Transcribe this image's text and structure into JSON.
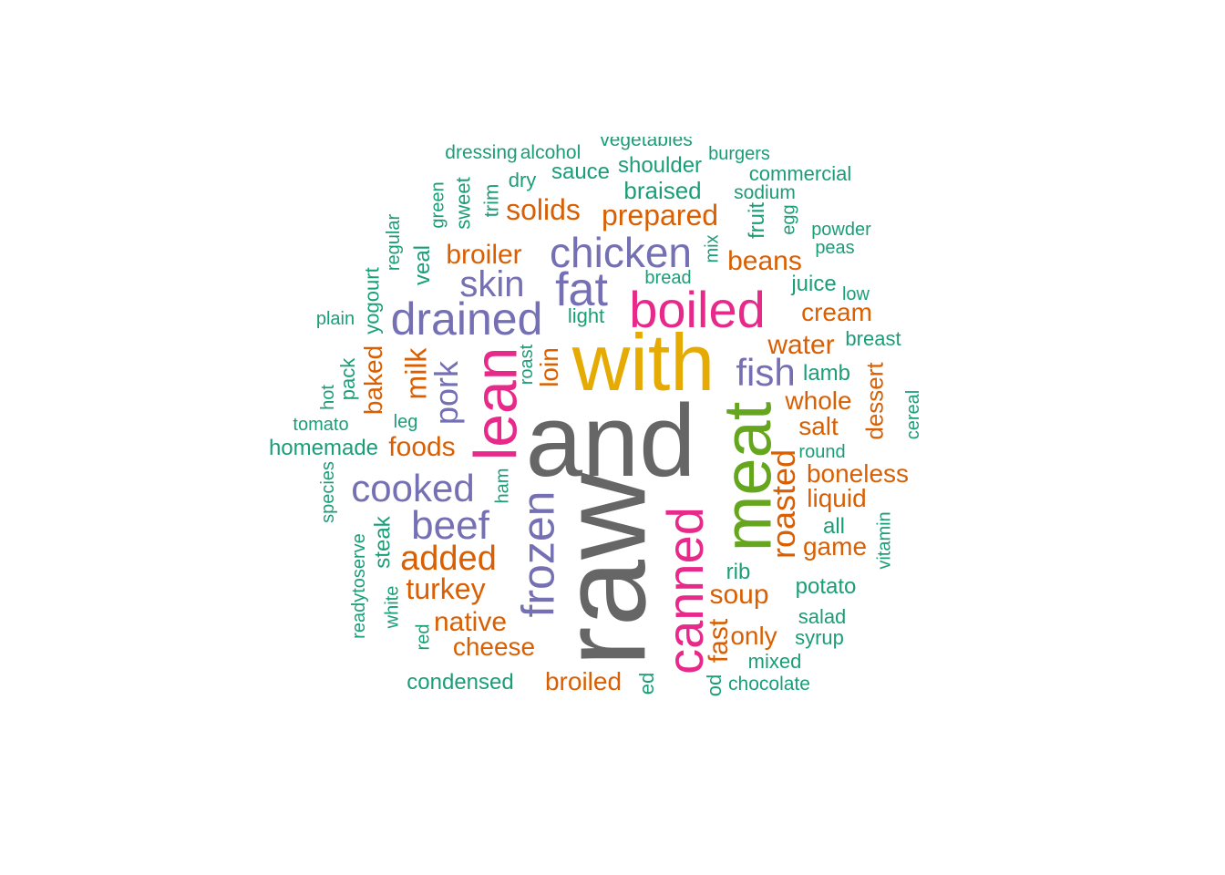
{
  "colors": {
    "gray": "#666666",
    "gold": "#E6AB02",
    "magenta": "#E7298A",
    "green": "#66A61E",
    "purple": "#7570B3",
    "orange": "#D95F02",
    "teal": "#1B9E77"
  },
  "words": [
    {
      "text": "raw",
      "color": "gray",
      "rotated": true
    },
    {
      "text": "and",
      "color": "gray",
      "rotated": false
    },
    {
      "text": "with",
      "color": "gold",
      "rotated": false
    },
    {
      "text": "meat",
      "color": "green",
      "rotated": true
    },
    {
      "text": "canned",
      "color": "magenta",
      "rotated": true
    },
    {
      "text": "lean",
      "color": "magenta",
      "rotated": true
    },
    {
      "text": "boiled",
      "color": "magenta",
      "rotated": false
    },
    {
      "text": "frozen",
      "color": "purple",
      "rotated": true
    },
    {
      "text": "chicken",
      "color": "purple",
      "rotated": false
    },
    {
      "text": "fat",
      "color": "purple",
      "rotated": false
    },
    {
      "text": "drained",
      "color": "purple",
      "rotated": false
    },
    {
      "text": "cooked",
      "color": "purple",
      "rotated": false
    },
    {
      "text": "beef",
      "color": "purple",
      "rotated": false
    },
    {
      "text": "skin",
      "color": "purple",
      "rotated": false
    },
    {
      "text": "fish",
      "color": "purple",
      "rotated": false
    },
    {
      "text": "pork",
      "color": "purple",
      "rotated": true
    },
    {
      "text": "roasted",
      "color": "orange",
      "rotated": true
    },
    {
      "text": "added",
      "color": "orange",
      "rotated": false
    },
    {
      "text": "turkey",
      "color": "orange",
      "rotated": false
    },
    {
      "text": "prepared",
      "color": "orange",
      "rotated": false
    },
    {
      "text": "solids",
      "color": "orange",
      "rotated": false
    },
    {
      "text": "broiler",
      "color": "orange",
      "rotated": false
    },
    {
      "text": "beans",
      "color": "orange",
      "rotated": false
    },
    {
      "text": "water",
      "color": "orange",
      "rotated": false
    },
    {
      "text": "cream",
      "color": "orange",
      "rotated": false
    },
    {
      "text": "whole",
      "color": "orange",
      "rotated": false
    },
    {
      "text": "salt",
      "color": "orange",
      "rotated": false
    },
    {
      "text": "boneless",
      "color": "orange",
      "rotated": false
    },
    {
      "text": "liquid",
      "color": "orange",
      "rotated": false
    },
    {
      "text": "game",
      "color": "orange",
      "rotated": false
    },
    {
      "text": "soup",
      "color": "orange",
      "rotated": false
    },
    {
      "text": "only",
      "color": "orange",
      "rotated": false
    },
    {
      "text": "native",
      "color": "orange",
      "rotated": false
    },
    {
      "text": "cheese",
      "color": "orange",
      "rotated": false
    },
    {
      "text": "broiled",
      "color": "orange",
      "rotated": false
    },
    {
      "text": "foods",
      "color": "orange",
      "rotated": false
    },
    {
      "text": "milk",
      "color": "orange",
      "rotated": true
    },
    {
      "text": "baked",
      "color": "orange",
      "rotated": true
    },
    {
      "text": "loin",
      "color": "orange",
      "rotated": true
    },
    {
      "text": "fast",
      "color": "orange",
      "rotated": true
    },
    {
      "text": "dessert",
      "color": "orange",
      "rotated": true
    },
    {
      "text": "braised",
      "color": "teal",
      "rotated": false
    },
    {
      "text": "shoulder",
      "color": "teal",
      "rotated": false
    },
    {
      "text": "sauce",
      "color": "teal",
      "rotated": false
    },
    {
      "text": "dry",
      "color": "teal",
      "rotated": false
    },
    {
      "text": "dressing",
      "color": "teal",
      "rotated": false
    },
    {
      "text": "alcohol",
      "color": "teal",
      "rotated": false
    },
    {
      "text": "vegetables",
      "color": "teal",
      "rotated": false
    },
    {
      "text": "burgers",
      "color": "teal",
      "rotated": false
    },
    {
      "text": "commercial",
      "color": "teal",
      "rotated": false
    },
    {
      "text": "sodium",
      "color": "teal",
      "rotated": false
    },
    {
      "text": "powder",
      "color": "teal",
      "rotated": false
    },
    {
      "text": "peas",
      "color": "teal",
      "rotated": false
    },
    {
      "text": "juice",
      "color": "teal",
      "rotated": false
    },
    {
      "text": "low",
      "color": "teal",
      "rotated": false
    },
    {
      "text": "breast",
      "color": "teal",
      "rotated": false
    },
    {
      "text": "lamb",
      "color": "teal",
      "rotated": false
    },
    {
      "text": "round",
      "color": "teal",
      "rotated": false
    },
    {
      "text": "all",
      "color": "teal",
      "rotated": false
    },
    {
      "text": "rib",
      "color": "teal",
      "rotated": false
    },
    {
      "text": "potato",
      "color": "teal",
      "rotated": false
    },
    {
      "text": "salad",
      "color": "teal",
      "rotated": false
    },
    {
      "text": "syrup",
      "color": "teal",
      "rotated": false
    },
    {
      "text": "mixed",
      "color": "teal",
      "rotated": false
    },
    {
      "text": "chocolate",
      "color": "teal",
      "rotated": false
    },
    {
      "text": "condensed",
      "color": "teal",
      "rotated": false
    },
    {
      "text": "light",
      "color": "teal",
      "rotated": false
    },
    {
      "text": "bread",
      "color": "teal",
      "rotated": false
    },
    {
      "text": "plain",
      "color": "teal",
      "rotated": false
    },
    {
      "text": "tomato",
      "color": "teal",
      "rotated": false
    },
    {
      "text": "homemade",
      "color": "teal",
      "rotated": false
    },
    {
      "text": "leg",
      "color": "teal",
      "rotated": false
    },
    {
      "text": "green",
      "color": "teal",
      "rotated": true
    },
    {
      "text": "sweet",
      "color": "teal",
      "rotated": true
    },
    {
      "text": "trim",
      "color": "teal",
      "rotated": true
    },
    {
      "text": "regular",
      "color": "teal",
      "rotated": true
    },
    {
      "text": "veal",
      "color": "teal",
      "rotated": true
    },
    {
      "text": "yogourt",
      "color": "teal",
      "rotated": true
    },
    {
      "text": "pack",
      "color": "teal",
      "rotated": true
    },
    {
      "text": "hot",
      "color": "teal",
      "rotated": true
    },
    {
      "text": "species",
      "color": "teal",
      "rotated": true
    },
    {
      "text": "readytoserve",
      "color": "teal",
      "rotated": true
    },
    {
      "text": "steak",
      "color": "teal",
      "rotated": true
    },
    {
      "text": "white",
      "color": "teal",
      "rotated": true
    },
    {
      "text": "red",
      "color": "teal",
      "rotated": true
    },
    {
      "text": "ham",
      "color": "teal",
      "rotated": true
    },
    {
      "text": "roast",
      "color": "teal",
      "rotated": true
    },
    {
      "text": "mix",
      "color": "teal",
      "rotated": true
    },
    {
      "text": "fruit",
      "color": "teal",
      "rotated": true
    },
    {
      "text": "egg",
      "color": "teal",
      "rotated": true
    },
    {
      "text": "cereal",
      "color": "teal",
      "rotated": true
    },
    {
      "text": "vitamin",
      "color": "teal",
      "rotated": true
    },
    {
      "text": "ed",
      "color": "teal",
      "rotated": true
    },
    {
      "text": "od",
      "color": "teal",
      "rotated": true
    }
  ]
}
